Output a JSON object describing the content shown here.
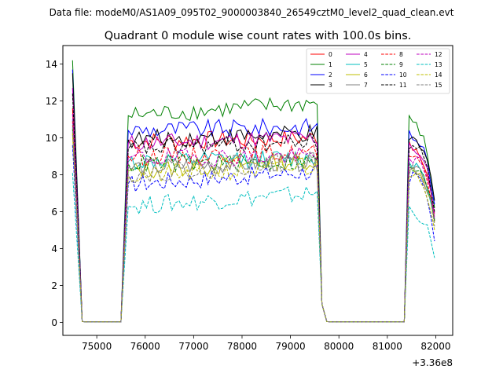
{
  "chart_data": {
    "type": "line",
    "suptitle": "Data file: modeM0/AS1A09_095T02_9000003840_26549cztM0_level2_quad_clean.evt",
    "title": "Quadrant 0 module wise count rates with 100.0s bins.",
    "xlabel": "",
    "ylabel": "",
    "x_offset_label": "+3.36e8",
    "x_offset": 336000000,
    "xlim": [
      74300,
      82350
    ],
    "ylim": [
      -0.7,
      15.0
    ],
    "xticks": [
      75000,
      76000,
      77000,
      78000,
      79000,
      80000,
      81000,
      82000
    ],
    "xtick_labels": [
      "75000",
      "76000",
      "77000",
      "78000",
      "79000",
      "80000",
      "81000",
      "82000"
    ],
    "yticks": [
      0,
      2,
      4,
      6,
      8,
      10,
      12,
      14
    ],
    "ytick_labels": [
      "0",
      "2",
      "4",
      "6",
      "8",
      "10",
      "12",
      "14"
    ],
    "grid": false,
    "legend_position": "top-right",
    "segments": [
      {
        "start": 74500,
        "end": 74700,
        "step": 100,
        "mode": "decay",
        "end_value": 0.05
      },
      {
        "start": 74700,
        "end": 75500,
        "step": 100,
        "mode": "zero"
      },
      {
        "start": 75500,
        "end": 75650,
        "step": 75,
        "mode": "rise",
        "start_value": 0.1
      },
      {
        "start": 75650,
        "end": 79550,
        "step": 75,
        "mode": "plateau"
      },
      {
        "start": 79550,
        "end": 79650,
        "step": 100,
        "mode": "decay",
        "end_value": 1.0
      },
      {
        "start": 79650,
        "end": 79750,
        "step": 100,
        "mode": "decay",
        "end_value": 0.05
      },
      {
        "start": 79750,
        "end": 81350,
        "step": 100,
        "mode": "zero"
      },
      {
        "start": 81350,
        "end": 81450,
        "step": 100,
        "mode": "rise",
        "start_value": 0.2
      },
      {
        "start": 81450,
        "end": 82000,
        "step": 75,
        "mode": "plateau2"
      }
    ],
    "series": [
      {
        "name": "0",
        "color": "#ff0000",
        "dash": "solid",
        "start": 11.6,
        "level": 9.8,
        "level_end": 10.0,
        "late": 9.5,
        "last": 5.5
      },
      {
        "name": "1",
        "color": "#008000",
        "dash": "solid",
        "start": 14.2,
        "level": 11.2,
        "level_end": 11.9,
        "late": 10.7,
        "last": 6.2
      },
      {
        "name": "2",
        "color": "#0000ff",
        "dash": "solid",
        "start": 13.7,
        "level": 10.4,
        "level_end": 10.6,
        "late": 10.0,
        "last": 6.4
      },
      {
        "name": "3",
        "color": "#000000",
        "dash": "solid",
        "start": 13.5,
        "level": 9.9,
        "level_end": 10.2,
        "late": 9.8,
        "last": 6.6
      },
      {
        "name": "4",
        "color": "#bf00bf",
        "dash": "solid",
        "start": 12.7,
        "level": 9.7,
        "level_end": 10.0,
        "late": 9.4,
        "last": 5.9
      },
      {
        "name": "5",
        "color": "#00bfbf",
        "dash": "solid",
        "start": 11.0,
        "level": 8.7,
        "level_end": 8.9,
        "late": 8.6,
        "last": 5.6
      },
      {
        "name": "6",
        "color": "#bfbf00",
        "dash": "solid",
        "start": 10.2,
        "level": 8.2,
        "level_end": 8.8,
        "late": 8.3,
        "last": 5.4
      },
      {
        "name": "7",
        "color": "#808080",
        "dash": "solid",
        "start": 10.7,
        "level": 8.4,
        "level_end": 8.7,
        "late": 8.5,
        "last": 5.7
      },
      {
        "name": "8",
        "color": "#ff0000",
        "dash": "dashed",
        "start": 10.9,
        "level": 9.0,
        "level_end": 9.2,
        "late": 8.8,
        "last": 5.8
      },
      {
        "name": "9",
        "color": "#008000",
        "dash": "dashed",
        "start": 10.5,
        "level": 8.6,
        "level_end": 8.7,
        "late": 8.3,
        "last": 5.5
      },
      {
        "name": "10",
        "color": "#0000ff",
        "dash": "dashed",
        "start": 9.6,
        "level": 7.5,
        "level_end": 8.2,
        "late": 7.9,
        "last": 4.4
      },
      {
        "name": "11",
        "color": "#000000",
        "dash": "dashed",
        "start": 12.4,
        "level": 9.4,
        "level_end": 9.8,
        "late": 9.6,
        "last": 6.0
      },
      {
        "name": "12",
        "color": "#bf00bf",
        "dash": "dashed",
        "start": 11.3,
        "level": 8.9,
        "level_end": 9.0,
        "late": 8.9,
        "last": 5.6
      },
      {
        "name": "13",
        "color": "#00bfbf",
        "dash": "dashed",
        "start": 8.1,
        "level": 6.3,
        "level_end": 7.0,
        "late": 5.9,
        "last": 3.5
      },
      {
        "name": "14",
        "color": "#bfbf00",
        "dash": "dashed",
        "start": 10.3,
        "level": 7.9,
        "level_end": 8.4,
        "late": 8.1,
        "last": 5.0
      },
      {
        "name": "15",
        "color": "#808080",
        "dash": "dashed",
        "start": 10.6,
        "level": 8.0,
        "level_end": 8.8,
        "late": 8.4,
        "last": 5.2
      }
    ]
  }
}
